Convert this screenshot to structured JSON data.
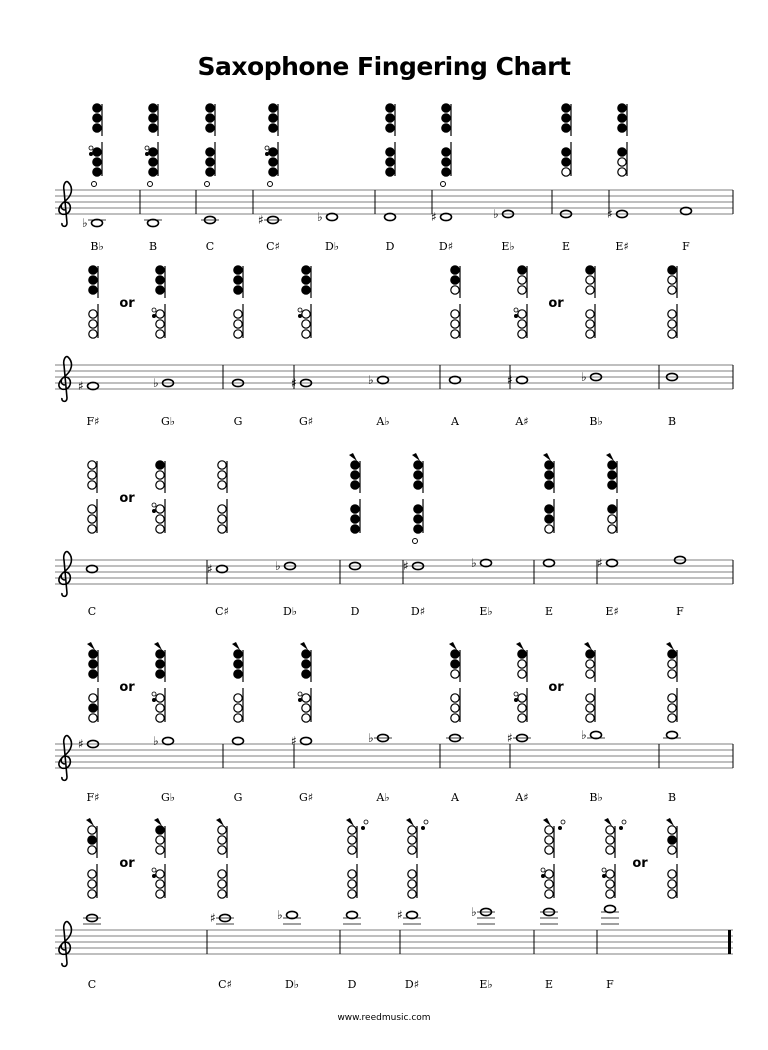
{
  "title": "Saxophone Fingering Chart",
  "footer": "www.reedmusic.com",
  "or_label": "or",
  "rows": [
    {
      "notes": [
        {
          "name": "B♭",
          "step": -3,
          "acc": "♭"
        },
        {
          "name": "B",
          "step": -3,
          "acc": ""
        },
        {
          "name": "C",
          "step": -2,
          "acc": ""
        },
        {
          "name": "C♯",
          "step": -2,
          "acc": "♯"
        },
        {
          "name": "D♭",
          "step": -1,
          "acc": "♭"
        },
        {
          "name": "D",
          "step": -1,
          "acc": ""
        },
        {
          "name": "D♯",
          "step": -1,
          "acc": "♯"
        },
        {
          "name": "E♭",
          "step": 0,
          "acc": "♭"
        },
        {
          "name": "E",
          "step": 0,
          "acc": ""
        },
        {
          "name": "E♯",
          "step": 0,
          "acc": "♯"
        },
        {
          "name": "F",
          "step": 1,
          "acc": ""
        }
      ],
      "fingerings": [
        {
          "top": "111",
          "bottom": "111",
          "octave": false,
          "low": true,
          "side": true
        },
        {
          "top": "111",
          "bottom": "111",
          "octave": false,
          "low": true,
          "side": true
        },
        {
          "top": "111",
          "bottom": "111",
          "octave": false,
          "low": true,
          "side": false
        },
        {
          "top": "111",
          "bottom": "111",
          "octave": false,
          "low": true,
          "side": true
        },
        {
          "top": "111",
          "bottom": "111",
          "octave": false,
          "low": false,
          "side": false
        },
        {
          "top": "111",
          "bottom": "111",
          "octave": false,
          "low": true,
          "side": false
        },
        {
          "top": "111",
          "bottom": "110",
          "octave": false,
          "low": false,
          "side": false
        },
        {
          "top": "111",
          "bottom": "100",
          "octave": false,
          "low": false,
          "side": false
        }
      ]
    },
    {
      "notes": [
        {
          "name": "F♯",
          "step": 1,
          "acc": "♯"
        },
        {
          "name": "G♭",
          "step": 2,
          "acc": "♭"
        },
        {
          "name": "G",
          "step": 2,
          "acc": ""
        },
        {
          "name": "G♯",
          "step": 2,
          "acc": "♯"
        },
        {
          "name": "A♭",
          "step": 3,
          "acc": "♭"
        },
        {
          "name": "A",
          "step": 3,
          "acc": ""
        },
        {
          "name": "A♯",
          "step": 3,
          "acc": "♯"
        },
        {
          "name": "B♭",
          "step": 4,
          "acc": "♭"
        },
        {
          "name": "B",
          "step": 4,
          "acc": ""
        }
      ],
      "fingerings": [
        {
          "top": "111",
          "bottom": "000",
          "octave": false,
          "low": false,
          "side": false
        },
        {
          "top": "111",
          "bottom": "000",
          "octave": false,
          "low": false,
          "side": true
        },
        {
          "top": "111",
          "bottom": "000",
          "octave": false,
          "low": false,
          "side": false
        },
        {
          "top": "111",
          "bottom": "000",
          "octave": false,
          "low": false,
          "side": true
        },
        {
          "top": "110",
          "bottom": "000",
          "octave": false,
          "low": false,
          "side": false
        },
        {
          "top": "100",
          "bottom": "000",
          "octave": false,
          "low": false,
          "side": true
        },
        {
          "top": "100",
          "bottom": "000",
          "octave": false,
          "low": false,
          "side": false
        },
        {
          "top": "100",
          "bottom": "000",
          "octave": false,
          "low": false,
          "side": false
        }
      ]
    },
    {
      "notes": [
        {
          "name": "C",
          "step": 5,
          "acc": ""
        },
        {
          "name": "C♯",
          "step": 5,
          "acc": "♯"
        },
        {
          "name": "D♭",
          "step": 6,
          "acc": "♭"
        },
        {
          "name": "D",
          "step": 6,
          "acc": ""
        },
        {
          "name": "D♯",
          "step": 6,
          "acc": "♯"
        },
        {
          "name": "E♭",
          "step": 7,
          "acc": "♭"
        },
        {
          "name": "E",
          "step": 7,
          "acc": ""
        },
        {
          "name": "E♯",
          "step": 7,
          "acc": "♯"
        },
        {
          "name": "F",
          "step": 8,
          "acc": ""
        }
      ],
      "fingerings": [
        {
          "top": "000",
          "bottom": "000",
          "octave": false,
          "low": false,
          "side": false
        },
        {
          "top": "100",
          "bottom": "000",
          "octave": false,
          "low": false,
          "side": true
        },
        {
          "top": "000",
          "bottom": "000",
          "octave": false,
          "low": false,
          "side": false
        },
        {
          "top": "111",
          "bottom": "111",
          "octave": true,
          "low": false,
          "side": false
        },
        {
          "top": "111",
          "bottom": "111",
          "octave": true,
          "low": true,
          "side": false
        },
        {
          "top": "111",
          "bottom": "110",
          "octave": true,
          "low": false,
          "side": false
        },
        {
          "top": "111",
          "bottom": "100",
          "octave": true,
          "low": false,
          "side": false
        }
      ]
    },
    {
      "notes": [
        {
          "name": "F♯",
          "step": 8,
          "acc": "♯"
        },
        {
          "name": "G♭",
          "step": 9,
          "acc": "♭"
        },
        {
          "name": "G",
          "step": 9,
          "acc": ""
        },
        {
          "name": "G♯",
          "step": 9,
          "acc": "♯"
        },
        {
          "name": "A♭",
          "step": 10,
          "acc": "♭"
        },
        {
          "name": "A",
          "step": 10,
          "acc": ""
        },
        {
          "name": "A♯",
          "step": 10,
          "acc": "♯"
        },
        {
          "name": "B♭",
          "step": 11,
          "acc": "♭"
        },
        {
          "name": "B",
          "step": 11,
          "acc": ""
        }
      ],
      "fingerings": [
        {
          "top": "111",
          "bottom": "010",
          "octave": true,
          "low": false,
          "side": false
        },
        {
          "top": "111",
          "bottom": "000",
          "octave": true,
          "low": false,
          "side": true
        },
        {
          "top": "111",
          "bottom": "000",
          "octave": true,
          "low": false,
          "side": false
        },
        {
          "top": "111",
          "bottom": "000",
          "octave": true,
          "low": false,
          "side": true
        },
        {
          "top": "110",
          "bottom": "000",
          "octave": true,
          "low": false,
          "side": false
        },
        {
          "top": "100",
          "bottom": "000",
          "octave": true,
          "low": false,
          "side": true
        },
        {
          "top": "100",
          "bottom": "000",
          "octave": true,
          "low": false,
          "side": false
        },
        {
          "top": "100",
          "bottom": "000",
          "octave": true,
          "low": false,
          "side": false
        }
      ]
    },
    {
      "notes": [
        {
          "name": "C",
          "step": 12,
          "acc": ""
        },
        {
          "name": "C♯",
          "step": 12,
          "acc": "♯"
        },
        {
          "name": "D♭",
          "step": 13,
          "acc": "♭"
        },
        {
          "name": "D",
          "step": 13,
          "acc": ""
        },
        {
          "name": "D♯",
          "step": 13,
          "acc": "♯"
        },
        {
          "name": "E♭",
          "step": 14,
          "acc": "♭"
        },
        {
          "name": "E",
          "step": 14,
          "acc": ""
        },
        {
          "name": "F",
          "step": 15,
          "acc": ""
        }
      ],
      "fingerings": [
        {
          "top": "010",
          "bottom": "000",
          "octave": true,
          "low": false,
          "side": false
        },
        {
          "top": "100",
          "bottom": "000",
          "octave": true,
          "low": false,
          "side": true
        },
        {
          "top": "000",
          "bottom": "000",
          "octave": true,
          "low": false,
          "side": false
        },
        {
          "top": "000",
          "bottom": "000",
          "octave": true,
          "low": false,
          "side": false,
          "palm": true
        },
        {
          "top": "000",
          "bottom": "000",
          "octave": true,
          "low": false,
          "side": false,
          "palm": true
        },
        {
          "top": "000",
          "bottom": "000",
          "octave": true,
          "low": false,
          "side": true,
          "palm": true
        },
        {
          "top": "000",
          "bottom": "000",
          "octave": true,
          "low": false,
          "side": true,
          "palm": true
        },
        {
          "top": "010",
          "bottom": "000",
          "octave": true,
          "low": false,
          "side": false
        }
      ]
    }
  ]
}
